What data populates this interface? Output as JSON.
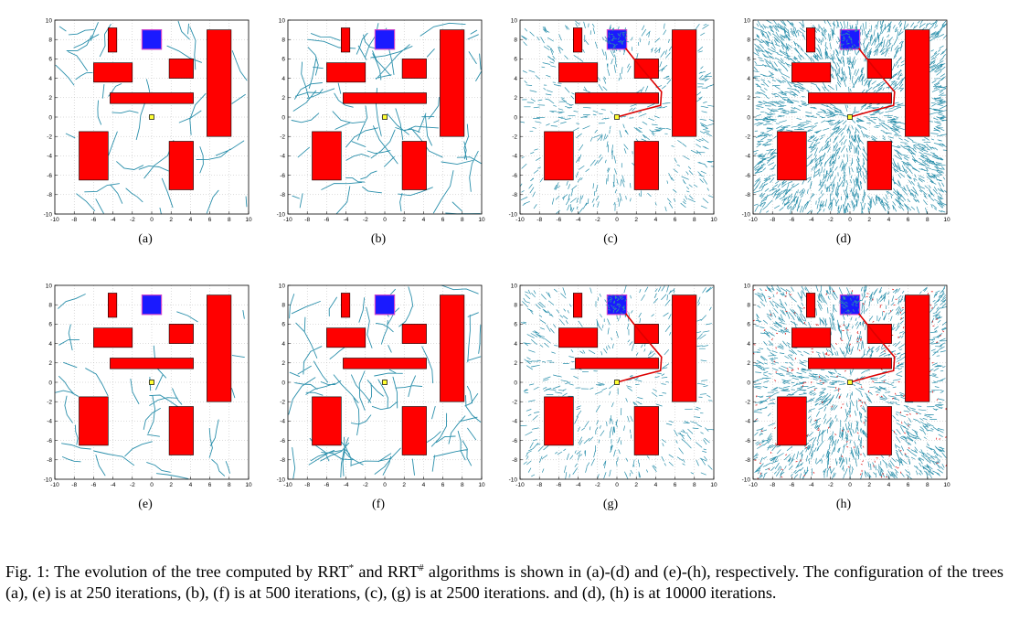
{
  "figure": {
    "panels": [
      {
        "label": "(a)",
        "density": 60,
        "solution_path": false,
        "goal_noise": false,
        "red_marks": false
      },
      {
        "label": "(b)",
        "density": 110,
        "solution_path": false,
        "goal_noise": false,
        "red_marks": false
      },
      {
        "label": "(c)",
        "density": 650,
        "solution_path": true,
        "goal_noise": true,
        "red_marks": false
      },
      {
        "label": "(d)",
        "density": 2600,
        "solution_path": true,
        "goal_noise": true,
        "red_marks": false
      },
      {
        "label": "(e)",
        "density": 60,
        "solution_path": false,
        "goal_noise": false,
        "red_marks": false
      },
      {
        "label": "(f)",
        "density": 110,
        "solution_path": false,
        "goal_noise": false,
        "red_marks": false
      },
      {
        "label": "(g)",
        "density": 620,
        "solution_path": true,
        "goal_noise": true,
        "red_marks": false
      },
      {
        "label": "(h)",
        "density": 1700,
        "solution_path": true,
        "goal_noise": true,
        "red_marks": true
      }
    ],
    "axis": {
      "xlim": [
        -10,
        10
      ],
      "ylim": [
        -10,
        10
      ],
      "xticks": [
        "-10",
        "-8",
        "-6",
        "-4",
        "-2",
        "0",
        "2",
        "4",
        "6",
        "8",
        "10"
      ],
      "yticks": [
        "10",
        "8",
        "6",
        "4",
        "2",
        "0",
        "-2",
        "-4",
        "-6",
        "-8",
        "-10"
      ],
      "grid": true
    },
    "obstacles": [
      {
        "x0": -4.5,
        "x1": -3.6,
        "y0": 6.7,
        "y1": 9.2
      },
      {
        "x0": -6,
        "x1": -2,
        "y0": 3.6,
        "y1": 5.6
      },
      {
        "x0": 1.8,
        "x1": 4.3,
        "y0": 4,
        "y1": 6
      },
      {
        "x0": -4.3,
        "x1": 4.3,
        "y0": 1.4,
        "y1": 2.5
      },
      {
        "x0": 5.7,
        "x1": 8.2,
        "y0": -2,
        "y1": 9
      },
      {
        "x0": -7.5,
        "x1": -4.5,
        "y0": -6.5,
        "y1": -1.5
      },
      {
        "x0": 1.8,
        "x1": 4.3,
        "y0": -7.5,
        "y1": -2.5
      }
    ],
    "goal_region": {
      "x0": -1,
      "x1": 1,
      "y0": 7,
      "y1": 9
    },
    "start": {
      "x": 0,
      "y": 0
    },
    "solution_path_points": [
      [
        0,
        0
      ],
      [
        2.5,
        0.7
      ],
      [
        4.5,
        1.2
      ],
      [
        4.6,
        2.6
      ],
      [
        2.4,
        5.2
      ],
      [
        0.9,
        7.1
      ]
    ],
    "colors": {
      "obstacle": "#ff0000",
      "goal_fill": "#1a1aff",
      "goal_edge": "#cc44cc",
      "tree": "#2a8fab",
      "start_fill": "#ffff33",
      "path": "#dd0000",
      "grid": "#b8b8b8"
    }
  },
  "caption": {
    "prefix": "Fig. 1: The evolution of the tree computed by RRT",
    "sup1": "*",
    "middle": " and RRT",
    "sup2": "#",
    "suffix": " algorithms is shown in (a)-(d) and (e)-(h), respectively. The configuration of the trees (a), (e) is at 250 iterations, (b), (f) is at 500 iterations, (c), (g) is at 2500 iterations. and (d), (h) is at 10000 iterations."
  }
}
